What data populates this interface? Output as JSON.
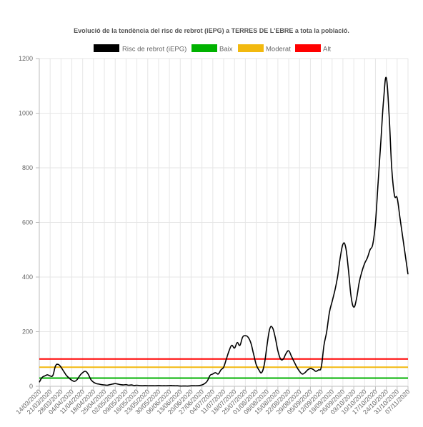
{
  "chart_data": {
    "type": "line",
    "title": "Evolució de la tendència del risc de rebrot (iEPG) a TERRES DE L'EBRE a tota la població.",
    "xlabel": "",
    "ylabel": "",
    "ylim": [
      0,
      1200
    ],
    "yticks": [
      0,
      200,
      400,
      600,
      800,
      1000,
      1200
    ],
    "grid": true,
    "legend_position": "top",
    "x_tick_labels": [
      "14/03/2020",
      "21/03/2020",
      "28/03/2020",
      "04/04/2020",
      "11/04/2020",
      "18/04/2020",
      "25/04/2020",
      "02/05/2020",
      "09/05/2020",
      "16/05/2020",
      "23/05/2020",
      "30/05/2020",
      "06/06/2020",
      "13/06/2020",
      "20/06/2020",
      "27/06/2020",
      "04/07/2020",
      "11/07/2020",
      "18/07/2020",
      "25/07/2020",
      "01/08/2020",
      "08/08/2020",
      "15/08/2020",
      "22/08/2020",
      "29/08/2020",
      "05/09/2020",
      "12/09/2020",
      "19/09/2020",
      "26/09/2020",
      "03/10/2020",
      "10/10/2020",
      "17/10/2020",
      "24/10/2020",
      "31/10/2020",
      "07/11/2020"
    ],
    "series": [
      {
        "name": "Risc de rebrot (iEPG)",
        "color": "#000000",
        "values": [
          15,
          32,
          38,
          42,
          38,
          40,
          75,
          80,
          70,
          55,
          40,
          30,
          22,
          18,
          25,
          40,
          50,
          55,
          45,
          25,
          15,
          10,
          8,
          6,
          5,
          4,
          6,
          8,
          10,
          8,
          6,
          5,
          6,
          4,
          5,
          3,
          4,
          3,
          2,
          3,
          2,
          2,
          2,
          2,
          3,
          2,
          2,
          2,
          3,
          3,
          2,
          2,
          1,
          1,
          1,
          1,
          2,
          2,
          2,
          3,
          5,
          10,
          20,
          40,
          45,
          50,
          45,
          60,
          70,
          100,
          130,
          150,
          140,
          160,
          150,
          180,
          185,
          180,
          160,
          120,
          80,
          60,
          50,
          80,
          150,
          210,
          215,
          180,
          130,
          100,
          100,
          120,
          130,
          110,
          90,
          70,
          55,
          45,
          50,
          60,
          65,
          62,
          55,
          60,
          70,
          150,
          200,
          270,
          310,
          350,
          400,
          470,
          520,
          510,
          430,
          330,
          290,
          320,
          380,
          420,
          450,
          470,
          500,
          520,
          600,
          750,
          900,
          1050,
          1130,
          1000,
          800,
          700,
          690,
          620,
          550,
          480,
          410
        ]
      },
      {
        "name": "Baix",
        "color": "#00b200",
        "values": [
          30
        ]
      },
      {
        "name": "Moderat",
        "color": "#f2b90f",
        "values": [
          70
        ]
      },
      {
        "name": "Alt",
        "color": "#ff0000",
        "values": [
          100
        ]
      }
    ]
  }
}
